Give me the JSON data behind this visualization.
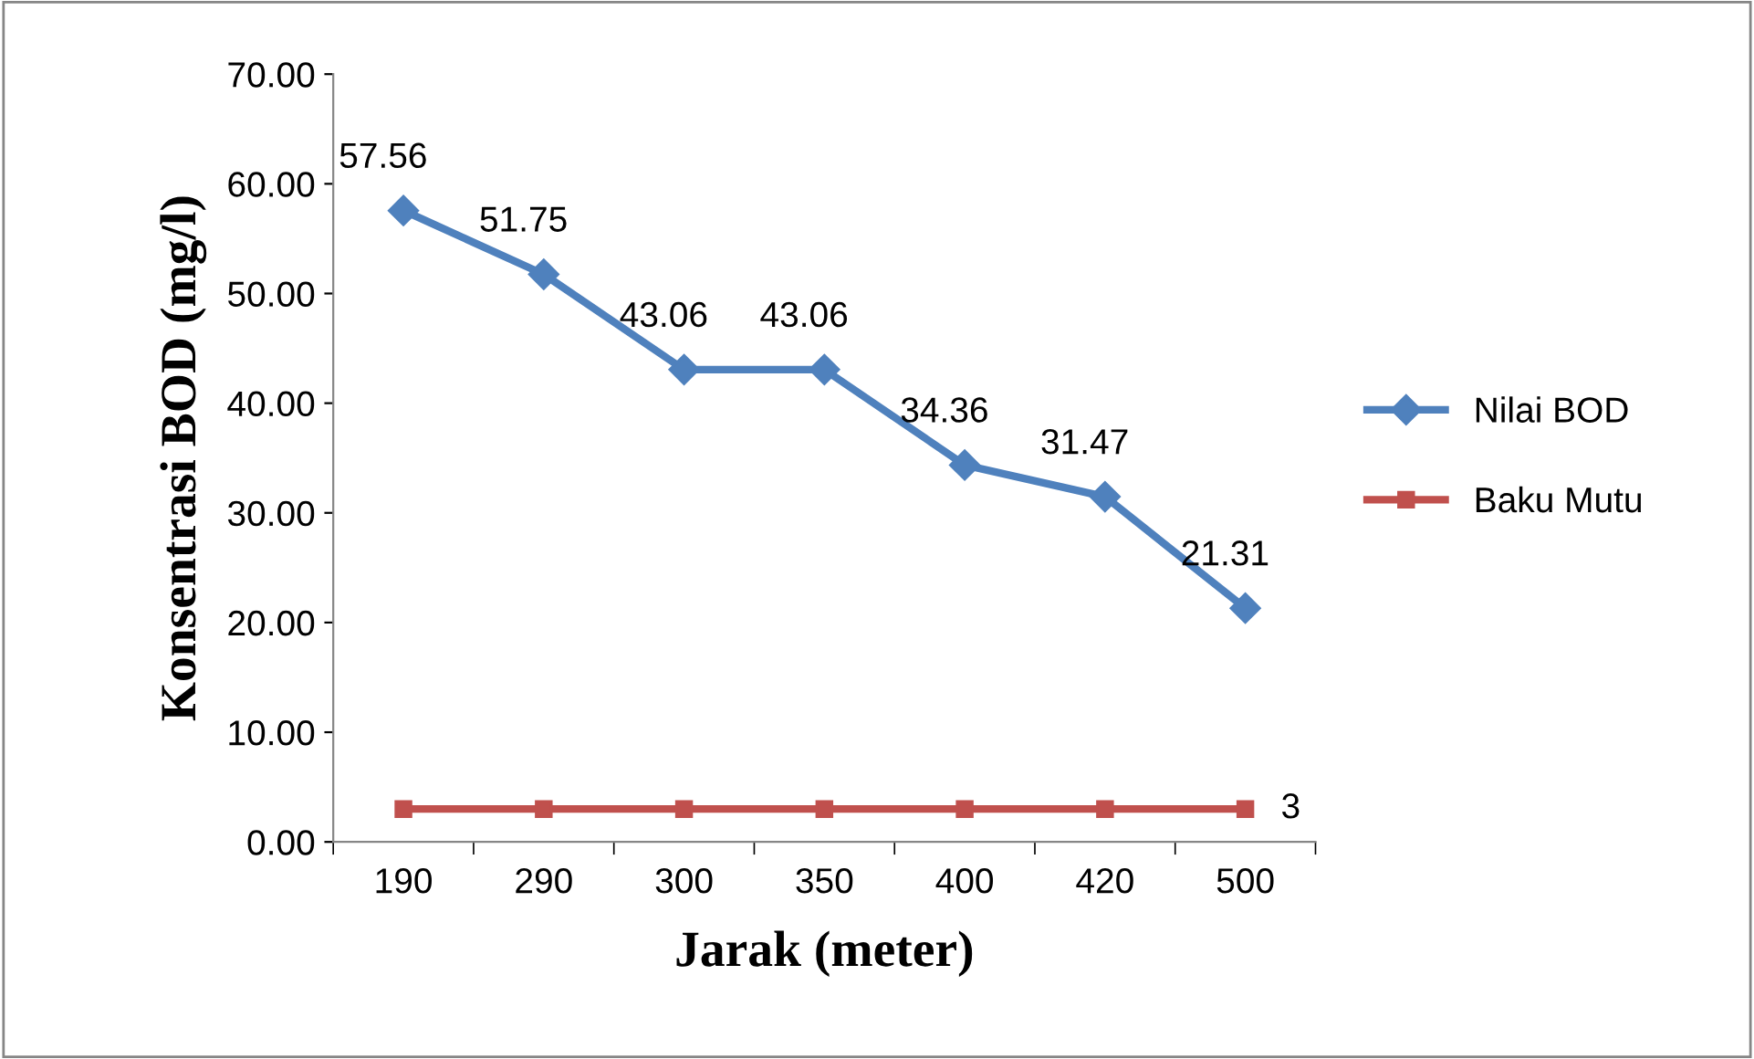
{
  "chart_data": {
    "type": "line",
    "xlabel": "Jarak (meter)",
    "ylabel": "Konsentrasi BOD (mg/l)",
    "categories": [
      "190",
      "290",
      "300",
      "350",
      "400",
      "420",
      "500"
    ],
    "series": [
      {
        "name": "Nilai BOD",
        "color": "#4f81bd",
        "marker": "diamond",
        "values": [
          57.56,
          51.75,
          43.06,
          43.06,
          34.36,
          31.47,
          21.31
        ],
        "value_labels": [
          "57.56",
          "51.75",
          "43.06",
          "43.06",
          "34.36",
          "31.47",
          "21.31"
        ]
      },
      {
        "name": "Baku Mutu",
        "color": "#c0504d",
        "marker": "square",
        "values": [
          3,
          3,
          3,
          3,
          3,
          3,
          3
        ],
        "value_labels": [
          null,
          null,
          null,
          null,
          null,
          null,
          "3"
        ]
      }
    ],
    "ylim": [
      0,
      70
    ],
    "yticks": [
      {
        "value": 0,
        "label": "0.00"
      },
      {
        "value": 10,
        "label": "10.00"
      },
      {
        "value": 20,
        "label": "20.00"
      },
      {
        "value": 30,
        "label": "30.00"
      },
      {
        "value": 40,
        "label": "40.00"
      },
      {
        "value": 50,
        "label": "50.00"
      },
      {
        "value": 60,
        "label": "60.00"
      },
      {
        "value": 70,
        "label": "70.00"
      }
    ],
    "grid": false,
    "legend": "right",
    "line_style": "solid"
  }
}
